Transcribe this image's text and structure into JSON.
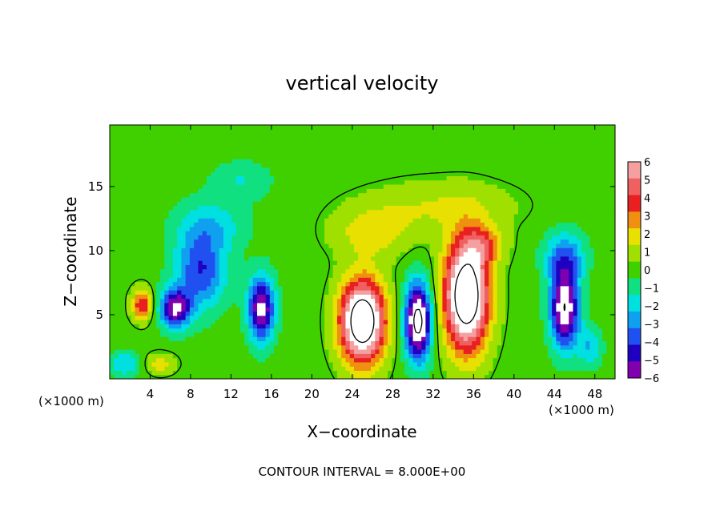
{
  "chart_data": {
    "type": "heatmap",
    "title": "vertical velocity",
    "xlabel": "X−coordinate",
    "ylabel": "Z−coordinate",
    "x_unit_left": "(×1000 m)",
    "x_unit_right": "(×1000 m)",
    "footer": "CONTOUR INTERVAL = 8.000E+00",
    "xlim": [
      0,
      50
    ],
    "ylim": [
      0,
      19.8
    ],
    "x_ticks": [
      4,
      8,
      12,
      16,
      20,
      24,
      28,
      32,
      36,
      40,
      44,
      48
    ],
    "y_ticks": [
      5,
      10,
      15
    ],
    "colorbar": {
      "range": [
        -6,
        6
      ],
      "ticks": [
        "6",
        "5",
        "4",
        "3",
        "2",
        "1",
        "0",
        "−1",
        "−2",
        "−3",
        "−4",
        "−5",
        "−6"
      ]
    },
    "features": [
      {
        "x": 25.0,
        "z": 4.5,
        "w": 10.5,
        "sx": 2.2,
        "sz": 3.2
      },
      {
        "x": 35.3,
        "z": 6.5,
        "w": 10.5,
        "sx": 2.2,
        "sz": 4.2
      },
      {
        "x": 37.0,
        "z": 10.5,
        "w": 3.0,
        "sx": 2.0,
        "sz": 1.5
      },
      {
        "x": 26.0,
        "z": 11.5,
        "w": 2.0,
        "sx": 4.0,
        "sz": 2.0
      },
      {
        "x": 33.0,
        "z": 13.5,
        "w": 1.5,
        "sx": 7.0,
        "sz": 2.0
      },
      {
        "x": 30.5,
        "z": 4.5,
        "w": -9.0,
        "sx": 1.3,
        "sz": 3.0
      },
      {
        "x": 6.5,
        "z": 5.5,
        "w": -6.5,
        "sx": 1.5,
        "sz": 1.5
      },
      {
        "x": 9.0,
        "z": 8.5,
        "w": -4.5,
        "sx": 2.5,
        "sz": 3.0
      },
      {
        "x": 10.0,
        "z": 12.0,
        "w": -2.0,
        "sx": 3.5,
        "sz": 2.0
      },
      {
        "x": 15.0,
        "z": 5.5,
        "w": -7.0,
        "sx": 1.3,
        "sz": 2.5
      },
      {
        "x": 45.0,
        "z": 5.5,
        "w": -8.0,
        "sx": 1.4,
        "sz": 3.0
      },
      {
        "x": 45.0,
        "z": 9.5,
        "w": -3.5,
        "sx": 2.0,
        "sz": 2.0
      },
      {
        "x": 3.2,
        "z": 5.8,
        "w": 4.5,
        "sx": 1.0,
        "sz": 1.2
      },
      {
        "x": 1.5,
        "z": 1.2,
        "w": -2.5,
        "sx": 1.5,
        "sz": 1.0
      },
      {
        "x": 13.0,
        "z": 15.5,
        "w": -1.5,
        "sx": 3.0,
        "sz": 1.5
      },
      {
        "x": 47.5,
        "z": 2.5,
        "w": -2.5,
        "sx": 1.2,
        "sz": 1.5
      },
      {
        "x": 5.0,
        "z": 1.2,
        "w": 2.0,
        "sx": 1.5,
        "sz": 0.8
      }
    ],
    "colors": {
      "w6": "#f4a0a0",
      "w5": "#f06060",
      "w4": "#e82020",
      "w3": "#f09010",
      "w2": "#e8e000",
      "w1": "#a0e000",
      "w0": "#40d000",
      "wn1": "#10e080",
      "wn2": "#00e0e0",
      "wn3": "#10a0f0",
      "wn4": "#2050f0",
      "wn5": "#2000c0",
      "wn6": "#8000b0"
    }
  }
}
